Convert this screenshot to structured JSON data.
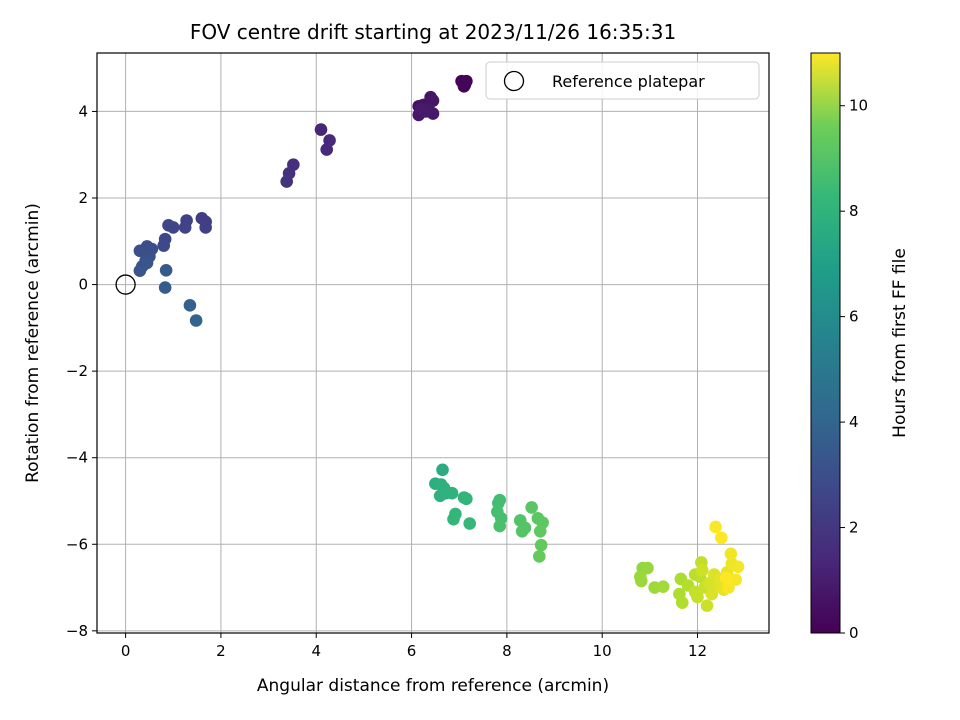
{
  "chart_data": {
    "type": "scatter",
    "title": "FOV centre drift starting at 2023/11/26 16:35:31",
    "xlabel": "Angular distance from reference (arcmin)",
    "ylabel": "Rotation from reference (arcmin)",
    "xlim": [
      -0.6,
      13.5
    ],
    "ylim": [
      -8.05,
      5.35
    ],
    "xticks": [
      0,
      2,
      4,
      6,
      8,
      10,
      12
    ],
    "yticks": [
      -8,
      -6,
      -4,
      -2,
      0,
      2,
      4
    ],
    "xtick_labels": [
      "0",
      "2",
      "4",
      "6",
      "8",
      "10",
      "12"
    ],
    "ytick_labels": [
      "−8",
      "−6",
      "−4",
      "−2",
      "0",
      "2",
      "4"
    ],
    "grid": true,
    "legend": {
      "placement": "top-right",
      "entries": [
        "Reference platepar"
      ]
    },
    "reference_point": {
      "x": 0,
      "y": 0
    },
    "colorbar": {
      "label": "Hours from first FF file",
      "colormap": "viridis",
      "range": [
        0,
        11
      ],
      "ticks": [
        0,
        2,
        4,
        6,
        8,
        10
      ],
      "tick_labels": [
        "0",
        "2",
        "4",
        "6",
        "8",
        "10"
      ]
    },
    "points": [
      {
        "x": 7.05,
        "y": 4.7,
        "c": 0.05
      },
      {
        "x": 7.15,
        "y": 4.7,
        "c": 0.08
      },
      {
        "x": 7.1,
        "y": 4.58,
        "c": 0.1
      },
      {
        "x": 7.12,
        "y": 4.62,
        "c": 0.12
      },
      {
        "x": 7.08,
        "y": 4.66,
        "c": 0.15
      },
      {
        "x": 6.15,
        "y": 4.12,
        "c": 0.5
      },
      {
        "x": 6.25,
        "y": 4.15,
        "c": 0.55
      },
      {
        "x": 6.4,
        "y": 4.33,
        "c": 0.6
      },
      {
        "x": 6.45,
        "y": 4.25,
        "c": 0.62
      },
      {
        "x": 6.35,
        "y": 4.08,
        "c": 0.65
      },
      {
        "x": 6.15,
        "y": 3.92,
        "c": 0.7
      },
      {
        "x": 6.45,
        "y": 3.95,
        "c": 0.72
      },
      {
        "x": 6.3,
        "y": 4.0,
        "c": 0.75
      },
      {
        "x": 6.2,
        "y": 4.05,
        "c": 0.78
      },
      {
        "x": 4.1,
        "y": 3.58,
        "c": 1.2
      },
      {
        "x": 4.28,
        "y": 3.33,
        "c": 1.3
      },
      {
        "x": 4.22,
        "y": 3.12,
        "c": 1.35
      },
      {
        "x": 3.52,
        "y": 2.77,
        "c": 1.5
      },
      {
        "x": 3.43,
        "y": 2.57,
        "c": 1.55
      },
      {
        "x": 3.38,
        "y": 2.38,
        "c": 1.6
      },
      {
        "x": 1.6,
        "y": 1.53,
        "c": 2.0
      },
      {
        "x": 1.68,
        "y": 1.45,
        "c": 2.05
      },
      {
        "x": 1.68,
        "y": 1.32,
        "c": 2.1
      },
      {
        "x": 1.28,
        "y": 1.48,
        "c": 2.2
      },
      {
        "x": 1.25,
        "y": 1.32,
        "c": 2.25
      },
      {
        "x": 1.0,
        "y": 1.32,
        "c": 2.3
      },
      {
        "x": 0.9,
        "y": 1.37,
        "c": 2.35
      },
      {
        "x": 0.83,
        "y": 1.05,
        "c": 2.4
      },
      {
        "x": 0.8,
        "y": 0.9,
        "c": 2.45
      },
      {
        "x": 0.45,
        "y": 0.88,
        "c": 2.6
      },
      {
        "x": 0.55,
        "y": 0.82,
        "c": 2.65
      },
      {
        "x": 0.3,
        "y": 0.78,
        "c": 2.7
      },
      {
        "x": 0.5,
        "y": 0.65,
        "c": 2.75
      },
      {
        "x": 0.42,
        "y": 0.55,
        "c": 2.8
      },
      {
        "x": 0.35,
        "y": 0.42,
        "c": 2.85
      },
      {
        "x": 0.3,
        "y": 0.32,
        "c": 2.9
      },
      {
        "x": 0.45,
        "y": 0.5,
        "c": 2.95
      },
      {
        "x": 0.85,
        "y": 0.33,
        "c": 3.1
      },
      {
        "x": 0.83,
        "y": -0.07,
        "c": 3.2
      },
      {
        "x": 1.35,
        "y": -0.48,
        "c": 3.4
      },
      {
        "x": 1.48,
        "y": -0.83,
        "c": 3.5
      },
      {
        "x": 6.65,
        "y": -4.28,
        "c": 6.8
      },
      {
        "x": 6.5,
        "y": -4.6,
        "c": 6.9
      },
      {
        "x": 6.62,
        "y": -4.62,
        "c": 6.95
      },
      {
        "x": 6.68,
        "y": -4.7,
        "c": 7.0
      },
      {
        "x": 6.6,
        "y": -4.88,
        "c": 7.0
      },
      {
        "x": 6.72,
        "y": -4.82,
        "c": 7.05
      },
      {
        "x": 6.85,
        "y": -4.82,
        "c": 7.1
      },
      {
        "x": 7.1,
        "y": -4.92,
        "c": 7.15
      },
      {
        "x": 7.15,
        "y": -4.95,
        "c": 7.2
      },
      {
        "x": 6.92,
        "y": -5.3,
        "c": 7.25
      },
      {
        "x": 6.88,
        "y": -5.42,
        "c": 7.3
      },
      {
        "x": 7.22,
        "y": -5.52,
        "c": 7.35
      },
      {
        "x": 7.85,
        "y": -4.98,
        "c": 7.6
      },
      {
        "x": 7.82,
        "y": -5.05,
        "c": 7.65
      },
      {
        "x": 7.8,
        "y": -5.25,
        "c": 7.7
      },
      {
        "x": 7.88,
        "y": -5.4,
        "c": 7.75
      },
      {
        "x": 7.85,
        "y": -5.58,
        "c": 7.8
      },
      {
        "x": 8.28,
        "y": -5.45,
        "c": 7.95
      },
      {
        "x": 8.38,
        "y": -5.62,
        "c": 8.0
      },
      {
        "x": 8.32,
        "y": -5.7,
        "c": 8.05
      },
      {
        "x": 8.52,
        "y": -5.15,
        "c": 8.1
      },
      {
        "x": 8.65,
        "y": -5.4,
        "c": 8.15
      },
      {
        "x": 8.75,
        "y": -5.5,
        "c": 8.2
      },
      {
        "x": 8.7,
        "y": -5.7,
        "c": 8.25
      },
      {
        "x": 8.72,
        "y": -6.02,
        "c": 8.3
      },
      {
        "x": 8.68,
        "y": -6.28,
        "c": 8.35
      },
      {
        "x": 10.85,
        "y": -6.55,
        "c": 9.2
      },
      {
        "x": 10.95,
        "y": -6.55,
        "c": 9.25
      },
      {
        "x": 10.8,
        "y": -6.75,
        "c": 9.3
      },
      {
        "x": 10.82,
        "y": -6.85,
        "c": 9.35
      },
      {
        "x": 11.1,
        "y": -7.0,
        "c": 9.4
      },
      {
        "x": 11.28,
        "y": -6.98,
        "c": 9.45
      },
      {
        "x": 11.65,
        "y": -6.8,
        "c": 9.6
      },
      {
        "x": 11.62,
        "y": -7.15,
        "c": 9.65
      },
      {
        "x": 11.68,
        "y": -7.35,
        "c": 9.7
      },
      {
        "x": 11.8,
        "y": -6.95,
        "c": 9.75
      },
      {
        "x": 11.95,
        "y": -6.7,
        "c": 9.85
      },
      {
        "x": 12.05,
        "y": -6.75,
        "c": 9.9
      },
      {
        "x": 12.08,
        "y": -6.42,
        "c": 9.95
      },
      {
        "x": 11.95,
        "y": -7.1,
        "c": 10.0
      },
      {
        "x": 12.0,
        "y": -7.22,
        "c": 10.05
      },
      {
        "x": 12.15,
        "y": -7.0,
        "c": 10.1
      },
      {
        "x": 12.2,
        "y": -7.42,
        "c": 10.15
      },
      {
        "x": 12.1,
        "y": -6.6,
        "c": 10.2
      },
      {
        "x": 12.25,
        "y": -6.9,
        "c": 10.3
      },
      {
        "x": 12.3,
        "y": -7.15,
        "c": 10.35
      },
      {
        "x": 12.35,
        "y": -6.7,
        "c": 10.4
      },
      {
        "x": 12.45,
        "y": -6.95,
        "c": 10.5
      },
      {
        "x": 12.5,
        "y": -6.8,
        "c": 10.55
      },
      {
        "x": 12.55,
        "y": -7.05,
        "c": 10.6
      },
      {
        "x": 12.62,
        "y": -6.65,
        "c": 10.65
      },
      {
        "x": 12.68,
        "y": -6.85,
        "c": 10.7
      },
      {
        "x": 12.72,
        "y": -6.45,
        "c": 10.75
      },
      {
        "x": 12.7,
        "y": -6.22,
        "c": 10.8
      },
      {
        "x": 12.85,
        "y": -6.52,
        "c": 10.85
      },
      {
        "x": 12.8,
        "y": -6.82,
        "c": 10.9
      },
      {
        "x": 12.65,
        "y": -7.0,
        "c": 10.92
      },
      {
        "x": 12.38,
        "y": -5.6,
        "c": 10.95
      },
      {
        "x": 12.5,
        "y": -5.85,
        "c": 10.98
      },
      {
        "x": 12.6,
        "y": -6.78,
        "c": 11.0
      }
    ]
  }
}
